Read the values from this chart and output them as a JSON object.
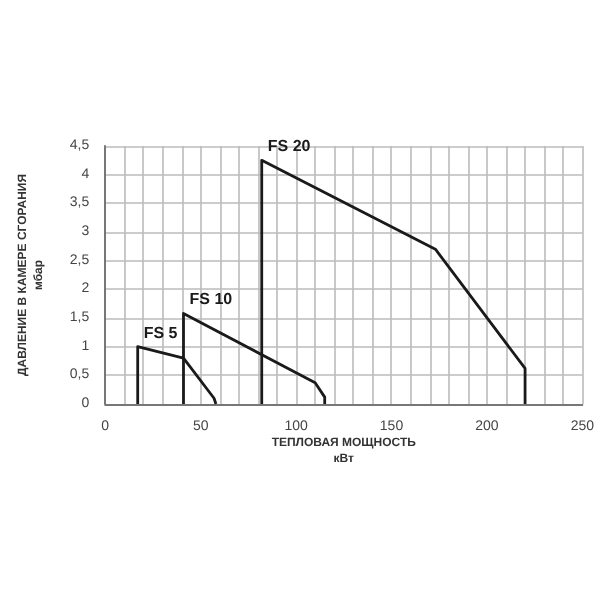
{
  "chart_data": {
    "type": "line",
    "xlabel": "ТЕПЛОВАЯ МОЩНОСТЬ\nкВт",
    "ylabel": "ДАВЛЕНИЕ В КАМЕРЕ СГОРАНИЯ\nмбар",
    "series": [
      {
        "name": "FS 5",
        "color": "#1a1a1a",
        "x": [
          17,
          17,
          41,
          57,
          58
        ],
        "values": [
          0,
          1.0,
          0.8,
          0.1,
          0
        ]
      },
      {
        "name": "FS 10",
        "color": "#1a1a1a",
        "x": [
          41,
          41,
          110,
          115,
          115
        ],
        "values": [
          0,
          1.58,
          0.37,
          0.12,
          0
        ]
      },
      {
        "name": "FS 20",
        "color": "#1a1a1a",
        "x": [
          82,
          82,
          173,
          220,
          220
        ],
        "values": [
          0,
          4.25,
          2.7,
          0.62,
          0
        ]
      }
    ],
    "xlim": [
      0,
      250
    ],
    "xticks": [
      0,
      {
        "value": 10,
        "label": null
      },
      {
        "value": 20,
        "label": null
      },
      {
        "value": 30,
        "label": null
      },
      {
        "value": 40,
        "label": null
      },
      50,
      {
        "value": 60,
        "label": null
      },
      {
        "value": 70,
        "label": null
      },
      {
        "value": 80,
        "label": null
      },
      {
        "value": 90,
        "label": null
      },
      100,
      {
        "value": 110,
        "label": null
      },
      {
        "value": 120,
        "label": null
      },
      {
        "value": 130,
        "label": null
      },
      {
        "value": 140,
        "label": null
      },
      150,
      {
        "value": 160,
        "label": null
      },
      {
        "value": 170,
        "label": null
      },
      {
        "value": 180,
        "label": null
      },
      {
        "value": 190,
        "label": null
      },
      200,
      {
        "value": 210,
        "label": null
      },
      {
        "value": 220,
        "label": null
      },
      {
        "value": 230,
        "label": null
      },
      {
        "value": 240,
        "label": null
      },
      250
    ],
    "ylim": [
      0,
      4.5
    ],
    "yticks": [
      0,
      {
        "value": 0.5,
        "label": "0,5"
      },
      1,
      {
        "value": 1.5,
        "label": "1,5"
      },
      2,
      {
        "value": 2.5,
        "label": "2,5"
      },
      3,
      {
        "value": 3.5,
        "label": "3,5"
      },
      4,
      {
        "value": 4.5,
        "label": "4,5"
      }
    ],
    "grid": true,
    "marker": "none",
    "line_style": "solid"
  }
}
